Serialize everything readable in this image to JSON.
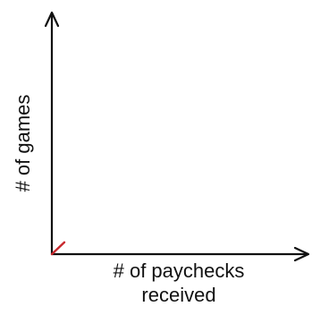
{
  "chart_data": {
    "type": "line",
    "title": "",
    "xlabel_lines": [
      "# of paychecks",
      "received"
    ],
    "ylabel": "# of games",
    "x": [
      0,
      1
    ],
    "series": [
      {
        "values": [
          0,
          1
        ]
      }
    ],
    "xlim": [
      0,
      20
    ],
    "ylim": [
      0,
      20
    ],
    "grid": false,
    "legend": "none",
    "colors": {
      "axis": "#111111",
      "line": "#c8282d"
    }
  }
}
